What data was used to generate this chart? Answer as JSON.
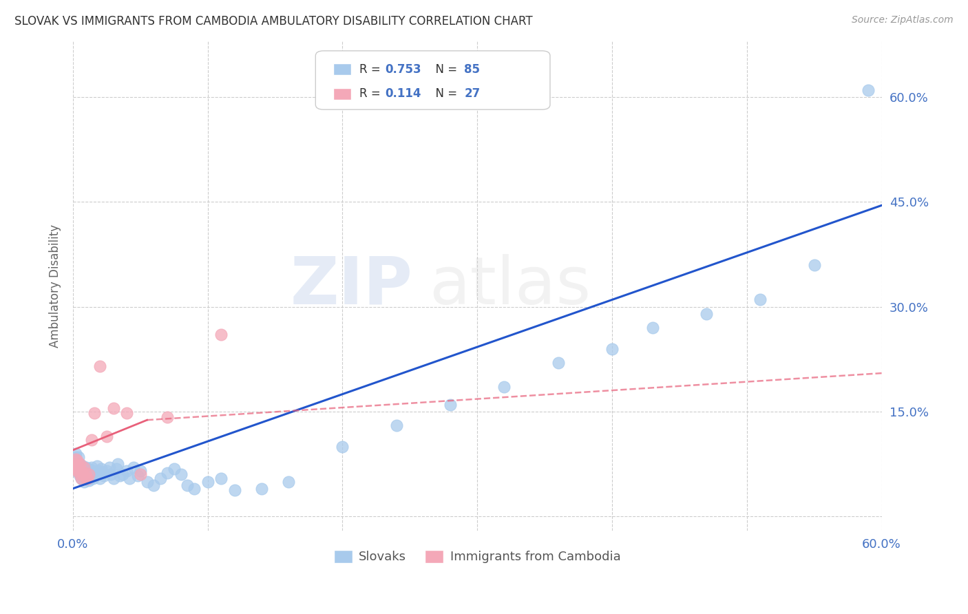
{
  "title": "SLOVAK VS IMMIGRANTS FROM CAMBODIA AMBULATORY DISABILITY CORRELATION CHART",
  "source": "Source: ZipAtlas.com",
  "ylabel_label": "Ambulatory Disability",
  "yticks": [
    0.0,
    0.15,
    0.3,
    0.45,
    0.6
  ],
  "xlim": [
    0.0,
    0.6
  ],
  "ylim": [
    -0.02,
    0.68
  ],
  "legend_r_slovak": "0.753",
  "legend_n_slovak": "85",
  "legend_r_cambodia": "0.114",
  "legend_n_cambodia": "27",
  "slovak_color": "#A8CAEC",
  "cambodia_color": "#F4A8B8",
  "trend_slovak_color": "#2255CC",
  "trend_cambodia_color_solid": "#E8607A",
  "trend_cambodia_color_dash": "#E8607A",
  "background_color": "#FFFFFF",
  "grid_color": "#CCCCCC",
  "title_color": "#333333",
  "axis_label_color": "#4472C4",
  "watermark_zip": "ZIP",
  "watermark_atlas": "atlas",
  "slovak_points_x": [
    0.001,
    0.001,
    0.002,
    0.002,
    0.002,
    0.003,
    0.003,
    0.003,
    0.003,
    0.004,
    0.004,
    0.004,
    0.005,
    0.005,
    0.005,
    0.006,
    0.006,
    0.006,
    0.007,
    0.007,
    0.007,
    0.008,
    0.008,
    0.008,
    0.009,
    0.009,
    0.01,
    0.01,
    0.01,
    0.011,
    0.011,
    0.012,
    0.012,
    0.012,
    0.013,
    0.013,
    0.014,
    0.014,
    0.015,
    0.015,
    0.016,
    0.017,
    0.018,
    0.019,
    0.02,
    0.021,
    0.022,
    0.023,
    0.025,
    0.027,
    0.028,
    0.03,
    0.032,
    0.033,
    0.035,
    0.037,
    0.04,
    0.042,
    0.045,
    0.048,
    0.05,
    0.055,
    0.06,
    0.065,
    0.07,
    0.075,
    0.08,
    0.085,
    0.09,
    0.1,
    0.11,
    0.12,
    0.14,
    0.16,
    0.2,
    0.24,
    0.28,
    0.32,
    0.36,
    0.4,
    0.43,
    0.47,
    0.51,
    0.55,
    0.59
  ],
  "slovak_points_y": [
    0.08,
    0.075,
    0.09,
    0.085,
    0.07,
    0.078,
    0.068,
    0.072,
    0.065,
    0.085,
    0.062,
    0.07,
    0.058,
    0.065,
    0.075,
    0.06,
    0.055,
    0.068,
    0.062,
    0.058,
    0.072,
    0.05,
    0.06,
    0.065,
    0.055,
    0.068,
    0.06,
    0.055,
    0.07,
    0.058,
    0.065,
    0.052,
    0.06,
    0.068,
    0.055,
    0.062,
    0.058,
    0.07,
    0.055,
    0.065,
    0.058,
    0.06,
    0.072,
    0.065,
    0.055,
    0.068,
    0.062,
    0.058,
    0.065,
    0.07,
    0.06,
    0.055,
    0.068,
    0.075,
    0.058,
    0.06,
    0.065,
    0.055,
    0.07,
    0.058,
    0.065,
    0.05,
    0.045,
    0.055,
    0.062,
    0.068,
    0.06,
    0.045,
    0.04,
    0.05,
    0.055,
    0.038,
    0.04,
    0.05,
    0.1,
    0.13,
    0.16,
    0.185,
    0.22,
    0.24,
    0.27,
    0.29,
    0.31,
    0.36,
    0.61
  ],
  "cambodia_points_x": [
    0.001,
    0.001,
    0.002,
    0.002,
    0.003,
    0.003,
    0.004,
    0.004,
    0.005,
    0.005,
    0.006,
    0.006,
    0.007,
    0.008,
    0.009,
    0.01,
    0.011,
    0.012,
    0.014,
    0.016,
    0.02,
    0.025,
    0.03,
    0.04,
    0.05,
    0.07,
    0.11
  ],
  "cambodia_points_y": [
    0.075,
    0.068,
    0.082,
    0.07,
    0.08,
    0.065,
    0.072,
    0.068,
    0.075,
    0.06,
    0.065,
    0.055,
    0.06,
    0.07,
    0.062,
    0.055,
    0.055,
    0.06,
    0.11,
    0.148,
    0.215,
    0.115,
    0.155,
    0.148,
    0.06,
    0.142,
    0.26
  ],
  "trend_slovak_start_x": 0.0,
  "trend_slovak_start_y": 0.04,
  "trend_slovak_end_x": 0.6,
  "trend_slovak_end_y": 0.445,
  "trend_cambodia_solid_start_x": 0.0,
  "trend_cambodia_solid_start_y": 0.095,
  "trend_cambodia_solid_end_x": 0.055,
  "trend_cambodia_solid_end_y": 0.138,
  "trend_cambodia_dash_start_x": 0.055,
  "trend_cambodia_dash_start_y": 0.138,
  "trend_cambodia_dash_end_x": 0.6,
  "trend_cambodia_dash_end_y": 0.205
}
